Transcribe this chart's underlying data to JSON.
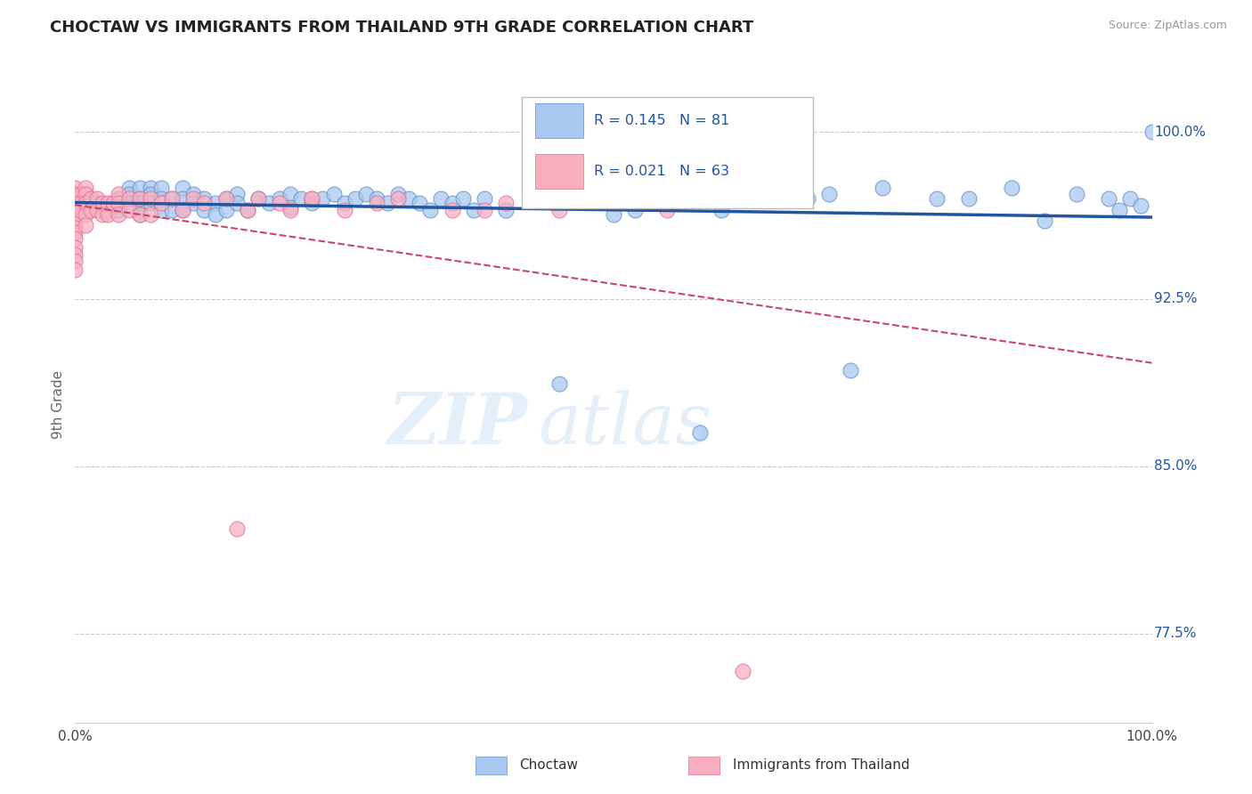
{
  "title": "CHOCTAW VS IMMIGRANTS FROM THAILAND 9TH GRADE CORRELATION CHART",
  "source_text": "Source: ZipAtlas.com",
  "ylabel": "9th Grade",
  "watermark_zip": "ZIP",
  "watermark_atlas": "atlas",
  "r_blue": 0.145,
  "n_blue": 81,
  "r_pink": 0.021,
  "n_pink": 63,
  "xlim": [
    0.0,
    1.0
  ],
  "ylim": [
    0.735,
    1.02
  ],
  "yticks": [
    0.775,
    0.85,
    0.925,
    1.0
  ],
  "ytick_labels": [
    "77.5%",
    "85.0%",
    "92.5%",
    "100.0%"
  ],
  "xtick_labels": [
    "0.0%",
    "100.0%"
  ],
  "xticks": [
    0.0,
    1.0
  ],
  "blue_scatter_color": "#A8C8F0",
  "blue_edge_color": "#6090C8",
  "pink_scatter_color": "#F8B0C0",
  "pink_edge_color": "#E07090",
  "blue_line_color": "#2255A0",
  "pink_line_color": "#CC4466",
  "legend_label_blue": "Choctaw",
  "legend_label_pink": "Immigrants from Thailand",
  "blue_scatter_x": [
    0.02,
    0.03,
    0.04,
    0.04,
    0.05,
    0.05,
    0.05,
    0.06,
    0.06,
    0.06,
    0.06,
    0.07,
    0.07,
    0.07,
    0.08,
    0.08,
    0.08,
    0.09,
    0.09,
    0.1,
    0.1,
    0.1,
    0.11,
    0.11,
    0.12,
    0.12,
    0.13,
    0.13,
    0.14,
    0.14,
    0.15,
    0.15,
    0.16,
    0.17,
    0.18,
    0.19,
    0.2,
    0.2,
    0.21,
    0.22,
    0.23,
    0.24,
    0.25,
    0.26,
    0.27,
    0.28,
    0.29,
    0.3,
    0.31,
    0.32,
    0.33,
    0.34,
    0.35,
    0.36,
    0.37,
    0.38,
    0.4,
    0.43,
    0.46,
    0.5,
    0.55,
    0.6,
    0.65,
    0.7,
    0.75,
    0.8,
    0.83,
    0.87,
    0.9,
    0.93,
    0.96,
    0.97,
    0.98,
    0.99,
    1.0,
    0.45,
    0.52,
    0.58,
    0.63,
    0.68,
    0.72
  ],
  "blue_scatter_y": [
    0.968,
    0.965,
    0.97,
    0.965,
    0.975,
    0.972,
    0.968,
    0.975,
    0.97,
    0.968,
    0.963,
    0.975,
    0.972,
    0.968,
    0.975,
    0.97,
    0.965,
    0.97,
    0.965,
    0.975,
    0.97,
    0.965,
    0.972,
    0.968,
    0.97,
    0.965,
    0.968,
    0.963,
    0.97,
    0.965,
    0.972,
    0.968,
    0.965,
    0.97,
    0.968,
    0.97,
    0.972,
    0.966,
    0.97,
    0.968,
    0.97,
    0.972,
    0.968,
    0.97,
    0.972,
    0.97,
    0.968,
    0.972,
    0.97,
    0.968,
    0.965,
    0.97,
    0.968,
    0.97,
    0.965,
    0.97,
    0.965,
    0.97,
    0.97,
    0.963,
    0.97,
    0.965,
    0.97,
    0.972,
    0.975,
    0.97,
    0.97,
    0.975,
    0.96,
    0.972,
    0.97,
    0.965,
    0.97,
    0.967,
    1.0,
    0.887,
    0.965,
    0.865,
    0.97,
    0.97,
    0.893
  ],
  "pink_scatter_x": [
    0.0,
    0.0,
    0.0,
    0.0,
    0.0,
    0.0,
    0.0,
    0.0,
    0.0,
    0.0,
    0.0,
    0.0,
    0.0,
    0.0,
    0.005,
    0.005,
    0.005,
    0.01,
    0.01,
    0.01,
    0.01,
    0.01,
    0.015,
    0.015,
    0.02,
    0.02,
    0.025,
    0.025,
    0.03,
    0.03,
    0.035,
    0.04,
    0.04,
    0.04,
    0.05,
    0.05,
    0.06,
    0.06,
    0.07,
    0.07,
    0.08,
    0.09,
    0.1,
    0.11,
    0.12,
    0.14,
    0.16,
    0.17,
    0.19,
    0.2,
    0.22,
    0.25,
    0.28,
    0.3,
    0.35,
    0.4,
    0.45,
    0.15,
    0.22,
    0.38,
    0.5,
    0.55,
    0.62
  ],
  "pink_scatter_y": [
    0.975,
    0.972,
    0.97,
    0.968,
    0.965,
    0.963,
    0.96,
    0.957,
    0.955,
    0.952,
    0.948,
    0.945,
    0.942,
    0.938,
    0.972,
    0.968,
    0.965,
    0.975,
    0.972,
    0.968,
    0.963,
    0.958,
    0.97,
    0.965,
    0.97,
    0.965,
    0.968,
    0.963,
    0.968,
    0.963,
    0.968,
    0.972,
    0.968,
    0.963,
    0.97,
    0.965,
    0.97,
    0.963,
    0.97,
    0.963,
    0.968,
    0.97,
    0.965,
    0.97,
    0.968,
    0.97,
    0.965,
    0.97,
    0.968,
    0.965,
    0.97,
    0.965,
    0.968,
    0.97,
    0.965,
    0.968,
    0.965,
    0.822,
    0.97,
    0.965,
    0.968,
    0.965,
    0.758
  ]
}
